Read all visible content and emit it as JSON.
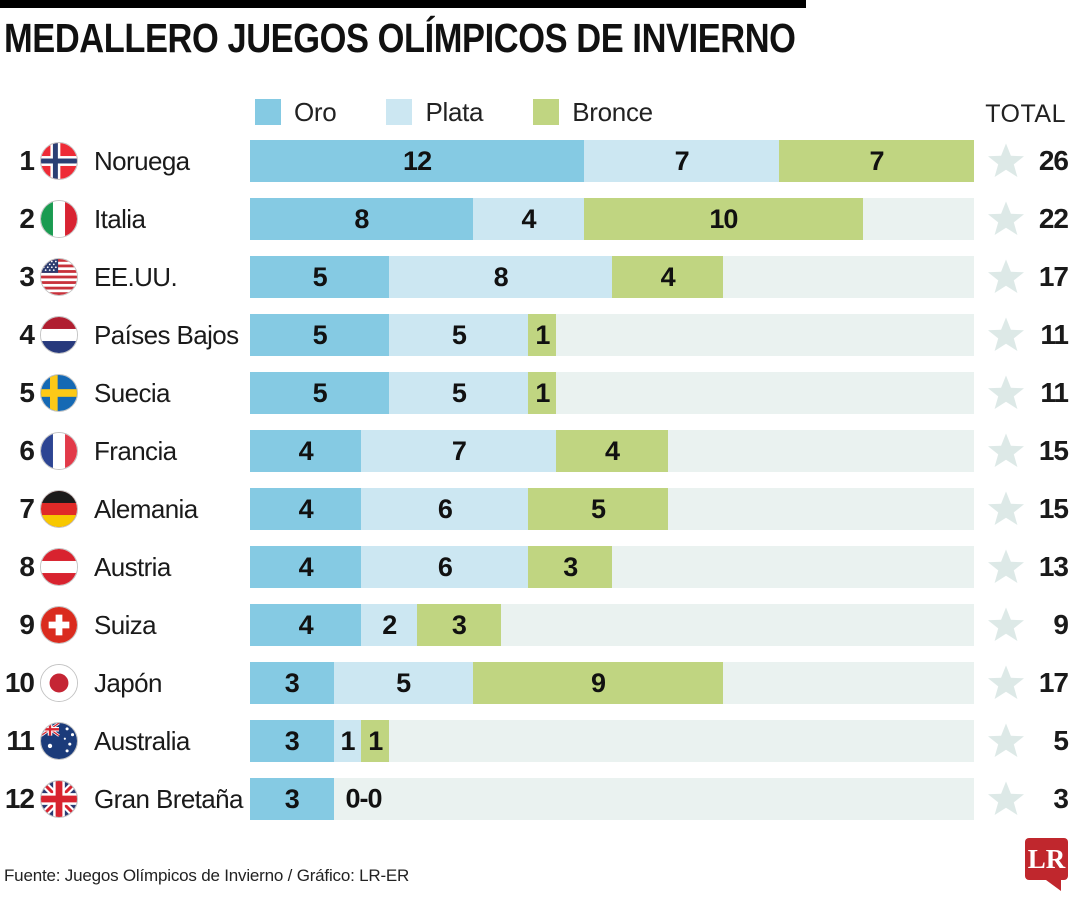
{
  "title": "MEDALLERO JUEGOS OLÍMPICOS DE INVIERNO",
  "legend": {
    "items": [
      {
        "label": "Oro",
        "color": "#85cae3"
      },
      {
        "label": "Plata",
        "color": "#cce7f2"
      },
      {
        "label": "Bronce",
        "color": "#c0d581"
      }
    ]
  },
  "total_header": {
    "label": "TOTAL",
    "icon": "star-icon"
  },
  "colors": {
    "oro": "#85cae3",
    "plata": "#cce7f2",
    "bronce": "#c0d581",
    "track": "#eaf2f0",
    "star": "#dde9e7",
    "accent_bar": "#000000",
    "logo_red": "#c0272d"
  },
  "footer": {
    "source": "Fuente: Juegos Olímpicos de Invierno / Gráfico: LR-ER",
    "logo_text": "LR"
  },
  "chart_data": {
    "type": "bar",
    "orientation": "horizontal",
    "stacked": true,
    "series_names": [
      "Oro",
      "Plata",
      "Bronce"
    ],
    "max_total": 26,
    "rows": [
      {
        "rank": 1,
        "country": "Noruega",
        "flag": "noruega",
        "oro": 12,
        "plata": 7,
        "bronce": 7,
        "total": 26
      },
      {
        "rank": 2,
        "country": "Italia",
        "flag": "italia",
        "oro": 8,
        "plata": 4,
        "bronce": 10,
        "total": 22
      },
      {
        "rank": 3,
        "country": "EE.UU.",
        "flag": "eeuu",
        "oro": 5,
        "plata": 8,
        "bronce": 4,
        "total": 17
      },
      {
        "rank": 4,
        "country": "Países Bajos",
        "flag": "paises-bajos",
        "oro": 5,
        "plata": 5,
        "bronce": 1,
        "total": 11
      },
      {
        "rank": 5,
        "country": "Suecia",
        "flag": "suecia",
        "oro": 5,
        "plata": 5,
        "bronce": 1,
        "total": 11
      },
      {
        "rank": 6,
        "country": "Francia",
        "flag": "francia",
        "oro": 4,
        "plata": 7,
        "bronce": 4,
        "total": 15
      },
      {
        "rank": 7,
        "country": "Alemania",
        "flag": "alemania",
        "oro": 4,
        "plata": 6,
        "bronce": 5,
        "total": 15
      },
      {
        "rank": 8,
        "country": "Austria",
        "flag": "austria",
        "oro": 4,
        "plata": 6,
        "bronce": 3,
        "total": 13
      },
      {
        "rank": 9,
        "country": "Suiza",
        "flag": "suiza",
        "oro": 4,
        "plata": 2,
        "bronce": 3,
        "total": 9
      },
      {
        "rank": 10,
        "country": "Japón",
        "flag": "japon",
        "oro": 3,
        "plata": 5,
        "bronce": 9,
        "total": 17
      },
      {
        "rank": 11,
        "country": "Australia",
        "flag": "australia",
        "oro": 3,
        "plata": 1,
        "bronce": 1,
        "total": 5
      },
      {
        "rank": 12,
        "country": "Gran Bretaña",
        "flag": "gran-bretana",
        "oro": 3,
        "plata": 0,
        "bronce": 0,
        "total": 3,
        "zero_label": "0-0"
      }
    ]
  }
}
